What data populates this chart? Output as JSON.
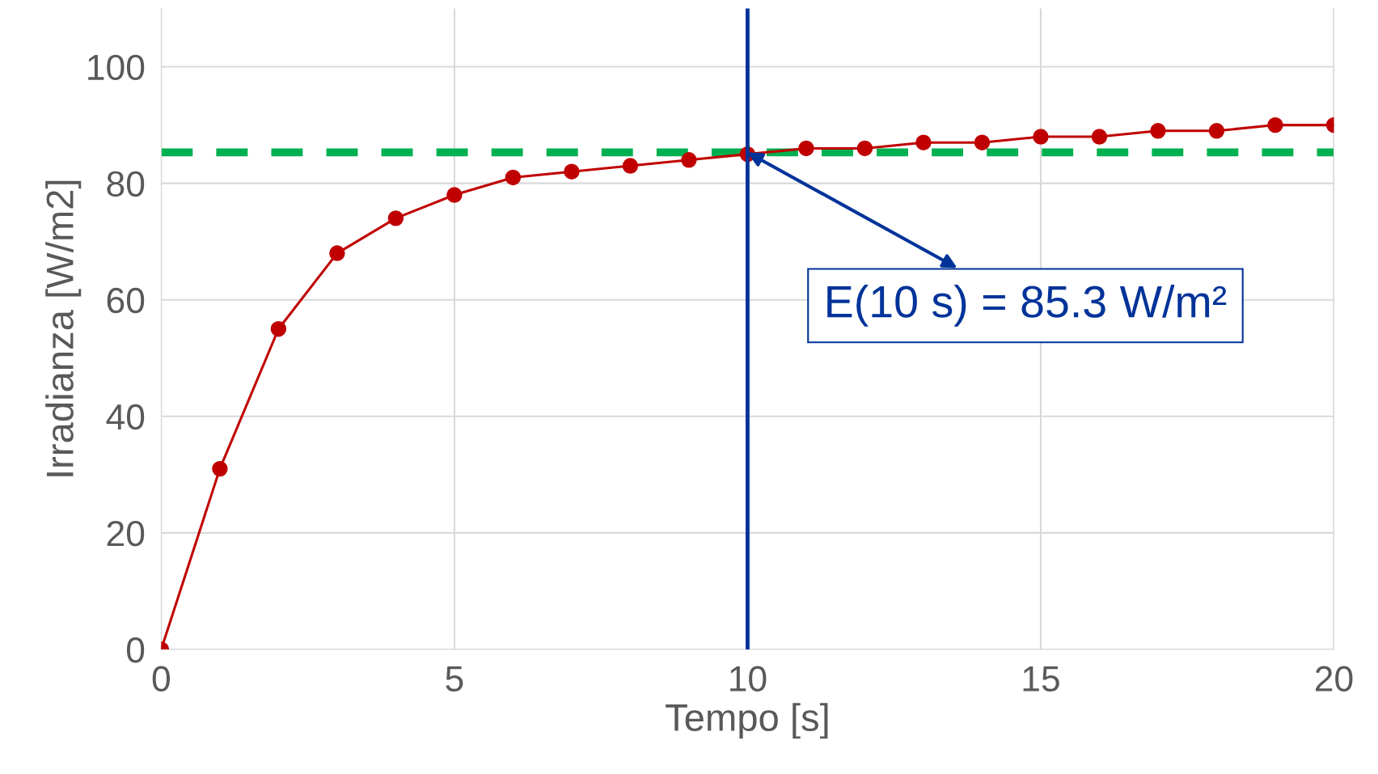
{
  "chart_data": {
    "type": "line",
    "xlabel": "Tempo [s]",
    "ylabel": "Irradianza [W/m2]",
    "x": [
      0,
      1,
      2,
      3,
      4,
      5,
      6,
      7,
      8,
      9,
      10,
      11,
      12,
      13,
      14,
      15,
      16,
      17,
      18,
      19,
      20
    ],
    "series": [
      {
        "color": "#c00000",
        "values": [
          0,
          31,
          55,
          68,
          74,
          78,
          81,
          82,
          83,
          84,
          85,
          86,
          86,
          87,
          87,
          88,
          88,
          89,
          89,
          90,
          90
        ]
      }
    ],
    "marker": "circle",
    "xlim": [
      0,
      20
    ],
    "xticks": [
      0,
      5,
      10,
      15,
      20
    ],
    "ylim": [
      0,
      110
    ],
    "yticks": [
      0,
      20,
      40,
      60,
      80,
      100
    ],
    "grid": true,
    "ref_lines": [
      {
        "axis": "y",
        "value": 85.3,
        "color": "#00b050",
        "line_style": "dashed"
      },
      {
        "axis": "x",
        "value": 10,
        "color": "#003399",
        "line_style": "solid"
      }
    ],
    "annotations": [
      {
        "text": "E(10 s) = 85.3 W/m²",
        "x": 10,
        "y": 85.3
      }
    ]
  }
}
